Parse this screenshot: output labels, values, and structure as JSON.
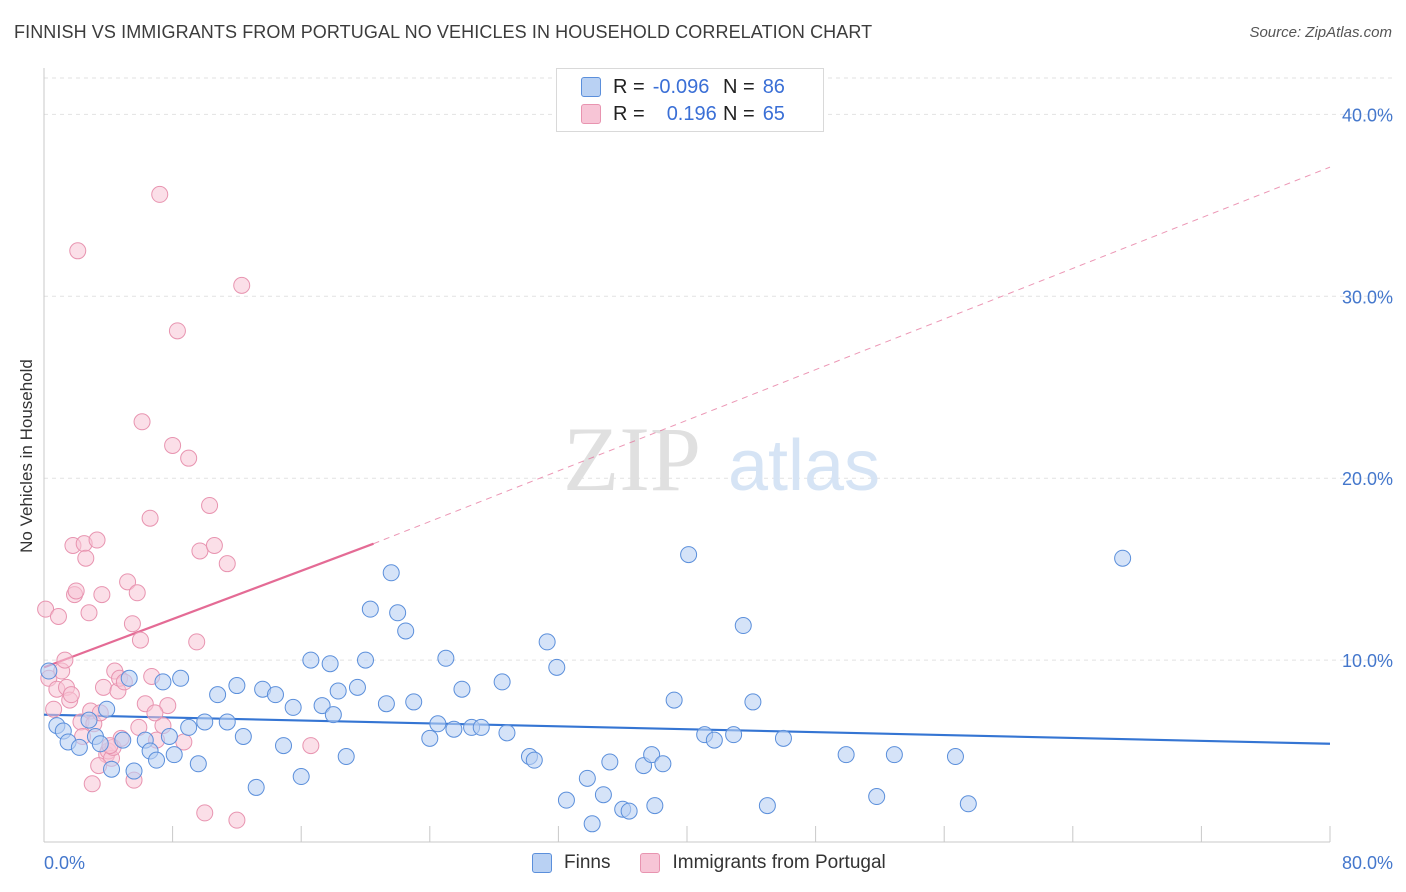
{
  "header": {
    "title": "FINNISH VS IMMIGRANTS FROM PORTUGAL NO VEHICLES IN HOUSEHOLD CORRELATION CHART",
    "source": "Source: ZipAtlas.com"
  },
  "watermark": {
    "zip": "ZIP",
    "atlas": "atlas"
  },
  "legend_top": {
    "rows": [
      {
        "r_label": "R =",
        "r_value": "-0.096",
        "n_label": "N =",
        "n_value": "86"
      },
      {
        "r_label": "R =",
        "r_value": "0.196",
        "n_label": "N =",
        "n_value": "65"
      }
    ]
  },
  "legend_bottom": {
    "finns": "Finns",
    "portugal": "Immigrants from Portugal"
  },
  "colors": {
    "finns_fill": "#b9d1f3",
    "finns_stroke": "#5b8fdb",
    "finns_line": "#3575d3",
    "portugal_fill": "#f7c5d6",
    "portugal_stroke": "#e894b0",
    "portugal_line": "#e46b95",
    "axis_text": "#4477cc"
  },
  "chart_data": {
    "type": "scatter",
    "title": "FINNISH VS IMMIGRANTS FROM PORTUGAL NO VEHICLES IN HOUSEHOLD CORRELATION CHART",
    "xlabel": "",
    "ylabel": "No Vehicles in Household",
    "xlim": [
      0,
      80
    ],
    "ylim": [
      0,
      42
    ],
    "x_tick_labels": [
      "0.0%",
      "80.0%"
    ],
    "y_ticks": [
      10,
      20,
      30,
      40
    ],
    "y_tick_labels": [
      "10.0%",
      "20.0%",
      "30.0%",
      "40.0%"
    ],
    "grid": true,
    "legend_position": "top-center",
    "series": [
      {
        "name": "Finns",
        "r": -0.096,
        "n": 86,
        "trend": {
          "x": [
            0,
            80
          ],
          "y": [
            7.0,
            5.4
          ],
          "dashed_x": null
        },
        "points": [
          [
            0.3,
            9.4
          ],
          [
            0.8,
            6.4
          ],
          [
            1.2,
            6.1
          ],
          [
            1.5,
            5.5
          ],
          [
            2.2,
            5.2
          ],
          [
            2.8,
            6.7
          ],
          [
            3.2,
            5.8
          ],
          [
            3.5,
            5.4
          ],
          [
            3.9,
            7.3
          ],
          [
            4.2,
            4.0
          ],
          [
            4.9,
            5.6
          ],
          [
            5.3,
            9.0
          ],
          [
            5.6,
            3.9
          ],
          [
            6.3,
            5.6
          ],
          [
            6.6,
            5.0
          ],
          [
            7.0,
            4.5
          ],
          [
            7.4,
            8.8
          ],
          [
            7.8,
            5.8
          ],
          [
            8.1,
            4.8
          ],
          [
            8.5,
            9.0
          ],
          [
            9.0,
            6.3
          ],
          [
            9.6,
            4.3
          ],
          [
            10.0,
            6.6
          ],
          [
            10.8,
            8.1
          ],
          [
            11.4,
            6.6
          ],
          [
            12.0,
            8.6
          ],
          [
            12.4,
            5.8
          ],
          [
            13.2,
            3.0
          ],
          [
            13.6,
            8.4
          ],
          [
            14.4,
            8.1
          ],
          [
            14.9,
            5.3
          ],
          [
            15.5,
            7.4
          ],
          [
            16.0,
            3.6
          ],
          [
            16.6,
            10.0
          ],
          [
            17.3,
            7.5
          ],
          [
            17.8,
            9.8
          ],
          [
            18.0,
            7.0
          ],
          [
            18.3,
            8.3
          ],
          [
            18.8,
            4.7
          ],
          [
            19.5,
            8.5
          ],
          [
            20.0,
            10.0
          ],
          [
            20.3,
            12.8
          ],
          [
            21.3,
            7.6
          ],
          [
            21.6,
            14.8
          ],
          [
            22.0,
            12.6
          ],
          [
            22.5,
            11.6
          ],
          [
            23.0,
            7.7
          ],
          [
            24.0,
            5.7
          ],
          [
            24.5,
            6.5
          ],
          [
            25.0,
            10.1
          ],
          [
            25.5,
            6.2
          ],
          [
            26.0,
            8.4
          ],
          [
            26.6,
            6.3
          ],
          [
            27.2,
            6.3
          ],
          [
            28.5,
            8.8
          ],
          [
            28.8,
            6.0
          ],
          [
            30.2,
            4.7
          ],
          [
            30.5,
            4.5
          ],
          [
            31.3,
            11.0
          ],
          [
            31.9,
            9.6
          ],
          [
            32.5,
            2.3
          ],
          [
            33.8,
            3.5
          ],
          [
            34.1,
            1.0
          ],
          [
            34.8,
            2.6
          ],
          [
            35.2,
            4.4
          ],
          [
            36.0,
            1.8
          ],
          [
            36.4,
            1.7
          ],
          [
            37.3,
            4.2
          ],
          [
            37.8,
            4.8
          ],
          [
            38.0,
            2.0
          ],
          [
            38.5,
            4.3
          ],
          [
            39.2,
            7.8
          ],
          [
            40.1,
            15.8
          ],
          [
            41.1,
            5.9
          ],
          [
            41.7,
            5.6
          ],
          [
            42.9,
            5.9
          ],
          [
            43.5,
            11.9
          ],
          [
            44.1,
            7.7
          ],
          [
            45.0,
            2.0
          ],
          [
            46.0,
            5.7
          ],
          [
            49.9,
            4.8
          ],
          [
            51.8,
            2.5
          ],
          [
            52.9,
            4.8
          ],
          [
            56.7,
            4.7
          ],
          [
            57.5,
            2.1
          ],
          [
            67.1,
            15.6
          ]
        ]
      },
      {
        "name": "Immigrants from Portugal",
        "r": 0.196,
        "n": 65,
        "trend": {
          "x": [
            0,
            20.5
          ],
          "y": [
            9.6,
            16.4
          ],
          "dashed_x": [
            20.5,
            80
          ],
          "dashed_y": [
            16.4,
            37.1
          ]
        },
        "points": [
          [
            0.1,
            12.8
          ],
          [
            0.3,
            9.0
          ],
          [
            0.6,
            7.3
          ],
          [
            0.8,
            8.4
          ],
          [
            0.9,
            12.4
          ],
          [
            1.1,
            9.4
          ],
          [
            1.3,
            10.0
          ],
          [
            1.4,
            8.5
          ],
          [
            1.6,
            7.8
          ],
          [
            1.7,
            8.1
          ],
          [
            1.8,
            16.3
          ],
          [
            1.9,
            13.6
          ],
          [
            2.0,
            13.8
          ],
          [
            2.1,
            32.5
          ],
          [
            2.3,
            6.6
          ],
          [
            2.5,
            16.4
          ],
          [
            2.6,
            15.6
          ],
          [
            2.8,
            12.6
          ],
          [
            2.9,
            7.2
          ],
          [
            3.0,
            3.2
          ],
          [
            3.1,
            6.5
          ],
          [
            3.3,
            16.6
          ],
          [
            3.5,
            7.1
          ],
          [
            3.6,
            13.6
          ],
          [
            3.7,
            8.5
          ],
          [
            3.9,
            4.8
          ],
          [
            4.0,
            5.0
          ],
          [
            4.2,
            4.6
          ],
          [
            4.3,
            5.2
          ],
          [
            4.4,
            9.4
          ],
          [
            4.6,
            8.3
          ],
          [
            4.7,
            9.0
          ],
          [
            4.8,
            5.7
          ],
          [
            5.0,
            8.8
          ],
          [
            5.2,
            14.3
          ],
          [
            5.5,
            12.0
          ],
          [
            5.6,
            3.4
          ],
          [
            5.8,
            13.7
          ],
          [
            6.0,
            11.1
          ],
          [
            6.1,
            23.1
          ],
          [
            6.3,
            7.6
          ],
          [
            6.6,
            17.8
          ],
          [
            6.7,
            9.1
          ],
          [
            7.0,
            5.6
          ],
          [
            7.2,
            35.6
          ],
          [
            7.4,
            6.4
          ],
          [
            7.7,
            7.5
          ],
          [
            8.0,
            21.8
          ],
          [
            8.3,
            28.1
          ],
          [
            9.0,
            21.1
          ],
          [
            9.5,
            11.0
          ],
          [
            9.7,
            16.0
          ],
          [
            10.0,
            1.6
          ],
          [
            10.3,
            18.5
          ],
          [
            10.6,
            16.3
          ],
          [
            11.4,
            15.3
          ],
          [
            12.0,
            1.2
          ],
          [
            12.3,
            30.6
          ],
          [
            16.6,
            5.3
          ],
          [
            6.9,
            7.1
          ],
          [
            4.1,
            5.3
          ],
          [
            2.4,
            5.8
          ],
          [
            5.9,
            6.3
          ],
          [
            3.4,
            4.2
          ],
          [
            8.7,
            5.5
          ]
        ]
      }
    ]
  }
}
